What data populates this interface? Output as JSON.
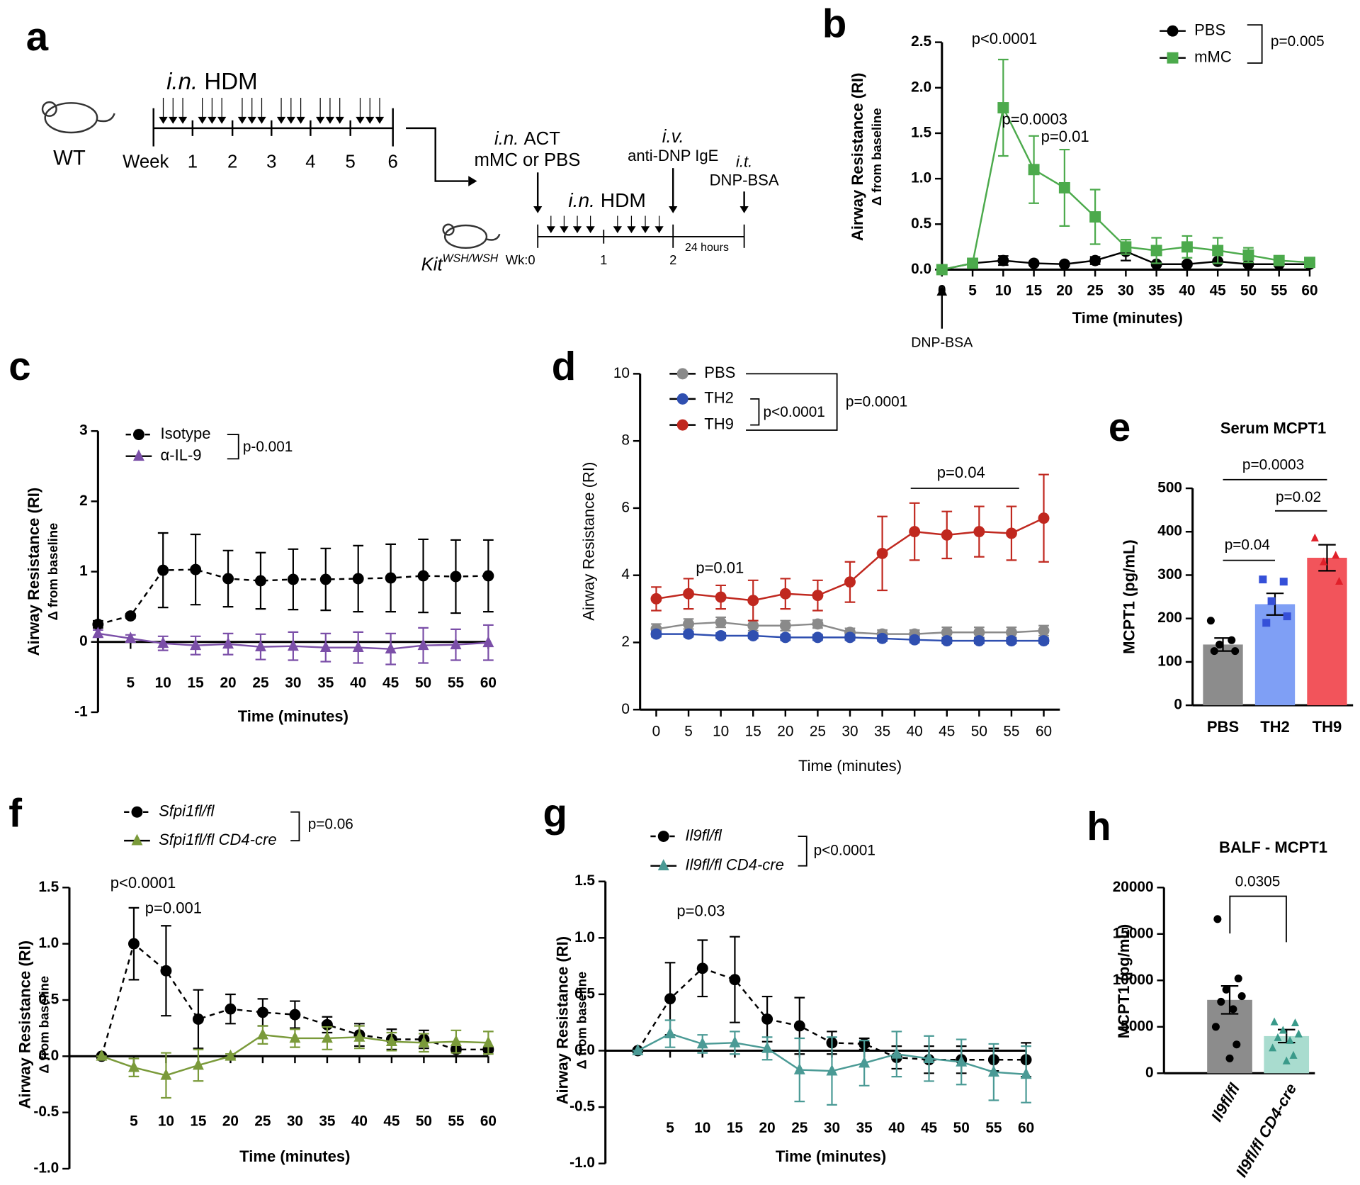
{
  "schematic": {
    "panel": "a",
    "wt_label": "WT",
    "phase1": {
      "route": "i.n.",
      "agent": "HDM"
    },
    "week_label": "Week",
    "weeks": [
      1,
      2,
      3,
      4,
      5,
      6
    ],
    "act": {
      "route": "i.n.",
      "agent": "ACT"
    },
    "act_detail": "mMC or PBS",
    "phase2": {
      "route": "i.n.",
      "agent": "HDM"
    },
    "iv_route": "i.v.",
    "iv_agent": "anti-DNP IgE",
    "it_route": "i.t.",
    "it_agent": "DNP-BSA",
    "strain": {
      "gene": "Kit",
      "allele": "WSH/WSH"
    },
    "wk_labels": [
      "Wk:0",
      "1",
      "2"
    ],
    "interval": "24 hours"
  },
  "chart_data": [
    {
      "type": "line",
      "panel": "b",
      "ylabel": "Airway Resistance (RI)",
      "ylabel2": "Δ from baseline",
      "xlabel": "Time (minutes)",
      "x": [
        0,
        5,
        10,
        15,
        20,
        25,
        30,
        35,
        40,
        45,
        50,
        55,
        60
      ],
      "xlim": [
        0,
        60
      ],
      "xticks": [
        0,
        5,
        10,
        15,
        20,
        25,
        30,
        35,
        40,
        45,
        50,
        55,
        60
      ],
      "ylim": [
        0,
        2.5
      ],
      "yticks": [
        {
          "value": 0,
          "label": "0.0"
        },
        0.5,
        {
          "value": 1,
          "label": "1.0"
        },
        1.5,
        {
          "value": 2,
          "label": "2.0"
        },
        2.5
      ],
      "series": [
        {
          "name": "PBS",
          "color": "#000000",
          "marker": "circle",
          "line_style": "solid",
          "values": [
            0,
            0.07,
            0.1,
            0.07,
            0.06,
            0.1,
            0.2,
            0.06,
            0.06,
            0.09,
            0.06,
            0.06,
            0.06
          ],
          "errors": [
            0,
            0.02,
            0.05,
            0.02,
            0.02,
            0.04,
            0.1,
            0.02,
            0.02,
            0.02,
            0.02,
            0.02,
            0.02
          ]
        },
        {
          "name": "mMC",
          "color": "#4caa4c",
          "marker": "square",
          "line_style": "solid",
          "values": [
            0,
            0.07,
            1.78,
            1.1,
            0.9,
            0.58,
            0.25,
            0.21,
            0.25,
            0.21,
            0.16,
            0.1,
            0.08
          ],
          "errors": [
            0,
            0.03,
            0.53,
            0.37,
            0.42,
            0.3,
            0.08,
            0.14,
            0.12,
            0.14,
            0.08,
            0.03,
            0.03
          ]
        }
      ],
      "annotations": [
        "p<0.0001",
        "p=0.0003",
        "p=0.01"
      ],
      "legend_stats": [
        "p=0.005"
      ],
      "arrow_label": "DNP-BSA"
    },
    {
      "type": "line",
      "panel": "c",
      "ylabel": "Airway Resistance (RI)",
      "ylabel2": "Δ from baseline",
      "xlabel": "Time (minutes)",
      "x": [
        0,
        5,
        10,
        15,
        20,
        25,
        30,
        35,
        40,
        45,
        50,
        55,
        60
      ],
      "xlim": [
        0,
        60
      ],
      "xticks": [
        5,
        10,
        15,
        20,
        25,
        30,
        35,
        40,
        45,
        50,
        55,
        60
      ],
      "ylim": [
        -1,
        3
      ],
      "yticks": [
        -1,
        0,
        1,
        2,
        3
      ],
      "series": [
        {
          "name": "Isotype",
          "color": "#000000",
          "marker": "circle",
          "line_style": "dashed",
          "values": [
            0.25,
            0.37,
            1.02,
            1.03,
            0.9,
            0.87,
            0.89,
            0.89,
            0.9,
            0.91,
            0.94,
            0.93,
            0.94
          ],
          "errors": [
            0.05,
            0.03,
            0.53,
            0.5,
            0.4,
            0.4,
            0.43,
            0.44,
            0.47,
            0.48,
            0.52,
            0.52,
            0.51
          ]
        },
        {
          "name": "α-IL-9",
          "color": "#7b4fa8",
          "marker": "triangle",
          "line_style": "solid",
          "values": [
            0.12,
            0.05,
            -0.02,
            -0.05,
            -0.03,
            -0.07,
            -0.06,
            -0.08,
            -0.08,
            -0.1,
            -0.05,
            -0.04,
            -0.01
          ],
          "errors": [
            0.05,
            0.05,
            0.1,
            0.13,
            0.15,
            0.18,
            0.2,
            0.2,
            0.22,
            0.22,
            0.25,
            0.22,
            0.25
          ]
        }
      ],
      "annotations": [],
      "legend_stats": [
        "p-0.001"
      ]
    },
    {
      "type": "line",
      "panel": "d",
      "ylabel": "Airway Resistance (RI)",
      "xlabel": "Time (minutes)",
      "x": [
        0,
        5,
        10,
        15,
        20,
        25,
        30,
        35,
        40,
        45,
        50,
        55,
        60
      ],
      "xlim": [
        -2.5,
        62.5
      ],
      "xticks": [
        0,
        5,
        10,
        15,
        20,
        25,
        30,
        35,
        40,
        45,
        50,
        55,
        60
      ],
      "ylim": [
        0,
        10
      ],
      "yticks": [
        0,
        2,
        4,
        6,
        8,
        10
      ],
      "series": [
        {
          "name": "PBS",
          "color": "#8a8a8a",
          "marker": "circle",
          "line_style": "solid",
          "values": [
            2.4,
            2.55,
            2.6,
            2.5,
            2.5,
            2.55,
            2.3,
            2.25,
            2.25,
            2.3,
            2.3,
            2.3,
            2.35
          ],
          "errors": [
            0.15,
            0.15,
            0.15,
            0.15,
            0.15,
            0.12,
            0.12,
            0.12,
            0.12,
            0.15,
            0.15,
            0.15,
            0.15
          ]
        },
        {
          "name": "TH2",
          "color": "#2f4fb0",
          "marker": "circle",
          "line_style": "solid",
          "values": [
            2.25,
            2.25,
            2.2,
            2.2,
            2.15,
            2.15,
            2.15,
            2.12,
            2.08,
            2.05,
            2.05,
            2.05,
            2.05
          ],
          "errors": [
            0.08,
            0.08,
            0.08,
            0.08,
            0.08,
            0.08,
            0.08,
            0.08,
            0.08,
            0.08,
            0.08,
            0.08,
            0.08
          ]
        },
        {
          "name": "TH9",
          "color": "#c0281f",
          "marker": "circle",
          "line_style": "solid",
          "values": [
            3.3,
            3.45,
            3.35,
            3.25,
            3.45,
            3.4,
            3.8,
            4.65,
            5.3,
            5.2,
            5.3,
            5.25,
            5.7
          ],
          "errors": [
            0.35,
            0.45,
            0.35,
            0.6,
            0.45,
            0.45,
            0.6,
            1.1,
            0.85,
            0.7,
            0.75,
            0.8,
            1.3
          ]
        }
      ],
      "annotations": [
        "p=0.01",
        "p=0.04"
      ],
      "legend_stats": [
        "p<0.0001",
        "p=0.0001"
      ]
    },
    {
      "type": "bar",
      "panel": "e",
      "title": "Serum MCPT1",
      "ylabel": "MCPT1 (pg/mL)",
      "categories": [
        "PBS",
        "TH2",
        "TH9"
      ],
      "values": [
        140,
        233,
        340
      ],
      "errors": [
        15,
        25,
        30
      ],
      "colors": [
        "#8c8c8c",
        "#7f9ff5",
        "#f2545b"
      ],
      "point_colors": [
        "#000000",
        "#3550d8",
        "#e0202a"
      ],
      "point_markers": [
        "circle",
        "square",
        "triangle"
      ],
      "points": [
        [
          195,
          150,
          140,
          125,
          125
        ],
        [
          290,
          285,
          240,
          205,
          190
        ],
        [
          385,
          345,
          330,
          285
        ]
      ],
      "ylim": [
        0,
        500
      ],
      "yticks": [
        0,
        100,
        200,
        300,
        400,
        500
      ],
      "comparisons": [
        "p=0.0003",
        "p=0.02",
        "p=0.04"
      ]
    },
    {
      "type": "line",
      "panel": "f",
      "ylabel": "Airway Resistance (RI)",
      "ylabel2": "Δ from baseline",
      "xlabel": "Time (minutes)",
      "x": [
        0,
        5,
        10,
        15,
        20,
        25,
        30,
        35,
        40,
        45,
        50,
        55,
        60
      ],
      "xlim": [
        -5,
        60
      ],
      "xticks": [
        5,
        10,
        15,
        20,
        25,
        30,
        35,
        40,
        45,
        50,
        55,
        60
      ],
      "ylim": [
        -1,
        1.5
      ],
      "yticks": [
        {
          "value": -1,
          "label": "-1.0"
        },
        -0.5,
        {
          "value": 0,
          "label": "0.0"
        },
        0.5,
        {
          "value": 1,
          "label": "1.0"
        },
        1.5
      ],
      "series": [
        {
          "name": "Sfpi1fl/fl",
          "color": "#000000",
          "marker": "circle",
          "line_style": "dashed",
          "values": [
            0,
            1.0,
            0.76,
            0.33,
            0.42,
            0.39,
            0.37,
            0.28,
            0.19,
            0.15,
            0.15,
            0.06,
            0.06
          ],
          "errors": [
            0,
            0.32,
            0.4,
            0.26,
            0.13,
            0.12,
            0.12,
            0.07,
            0.1,
            0.09,
            0.08,
            0.02,
            0.02
          ]
        },
        {
          "name": "Sfpi1fl/fl CD4-cre",
          "color": "#7a9a3a",
          "marker": "triangle",
          "line_style": "solid",
          "values": [
            0,
            -0.1,
            -0.17,
            -0.08,
            0,
            0.19,
            0.16,
            0.16,
            0.17,
            0.13,
            0.12,
            0.13,
            0.12
          ],
          "errors": [
            0,
            0.08,
            0.2,
            0.14,
            0.02,
            0.08,
            0.08,
            0.1,
            0.1,
            0.08,
            0.08,
            0.1,
            0.1
          ]
        }
      ],
      "annotations": [
        "p<0.0001",
        "p=0.001"
      ],
      "legend_stats": [
        "p=0.06"
      ]
    },
    {
      "type": "line",
      "panel": "g",
      "ylabel": "Airway Resistance (RI)",
      "ylabel2": "Δ from baseline",
      "xlabel": "Time (minutes)",
      "x": [
        0,
        5,
        10,
        15,
        20,
        25,
        30,
        35,
        40,
        45,
        50,
        55,
        60
      ],
      "xlim": [
        -5,
        60
      ],
      "xticks": [
        5,
        10,
        15,
        20,
        25,
        30,
        35,
        40,
        45,
        50,
        55,
        60
      ],
      "ylim": [
        -1,
        1.5
      ],
      "yticks": [
        {
          "value": -1,
          "label": "-1.0"
        },
        -0.5,
        {
          "value": 0,
          "label": "0.0"
        },
        0.5,
        {
          "value": 1,
          "label": "1.0"
        },
        1.5
      ],
      "series": [
        {
          "name": "Il9fl/fl",
          "color": "#000000",
          "marker": "circle",
          "line_style": "dashed",
          "values": [
            0,
            0.46,
            0.73,
            0.63,
            0.28,
            0.22,
            0.07,
            0.06,
            -0.06,
            -0.08,
            -0.08,
            -0.08,
            -0.08
          ],
          "errors": [
            0,
            0.32,
            0.25,
            0.38,
            0.2,
            0.25,
            0.1,
            0.05,
            0.1,
            0.12,
            0.12,
            0.1,
            0.15
          ]
        },
        {
          "name": "Il9fl/fl CD4-cre",
          "color": "#4a9a95",
          "marker": "triangle",
          "line_style": "solid",
          "values": [
            0,
            0.15,
            0.06,
            0.07,
            0.02,
            -0.17,
            -0.18,
            -0.11,
            -0.03,
            -0.07,
            -0.1,
            -0.19,
            -0.21
          ],
          "errors": [
            0,
            0.12,
            0.08,
            0.1,
            0.1,
            0.28,
            0.3,
            0.2,
            0.2,
            0.2,
            0.2,
            0.25,
            0.25
          ]
        }
      ],
      "annotations": [
        "p=0.03"
      ],
      "legend_stats": [
        "p<0.0001"
      ]
    },
    {
      "type": "bar",
      "panel": "h",
      "title": "BALF - MCPT1",
      "ylabel": "MCPT1 (pg/mL)",
      "categories": [
        "Il9fl/fl",
        "Il9fl/fl CD4-cre"
      ],
      "values": [
        7900,
        4000
      ],
      "errors": [
        1500,
        700
      ],
      "colors": [
        "#8c8c8c",
        "#a9dccf"
      ],
      "point_colors": [
        "#000000",
        "#3a9a8a"
      ],
      "point_markers": [
        "circle",
        "triangle"
      ],
      "points": [
        [
          16600,
          10200,
          9000,
          8300,
          7700,
          6900,
          5000,
          3100,
          1600
        ],
        [
          5500,
          5400,
          4600,
          4200,
          3800,
          3500,
          2700,
          1900,
          1300
        ]
      ],
      "ylim": [
        0,
        20000
      ],
      "yticks": [
        0,
        5000,
        10000,
        15000,
        20000
      ],
      "comparisons": [
        "0.0305"
      ]
    }
  ]
}
